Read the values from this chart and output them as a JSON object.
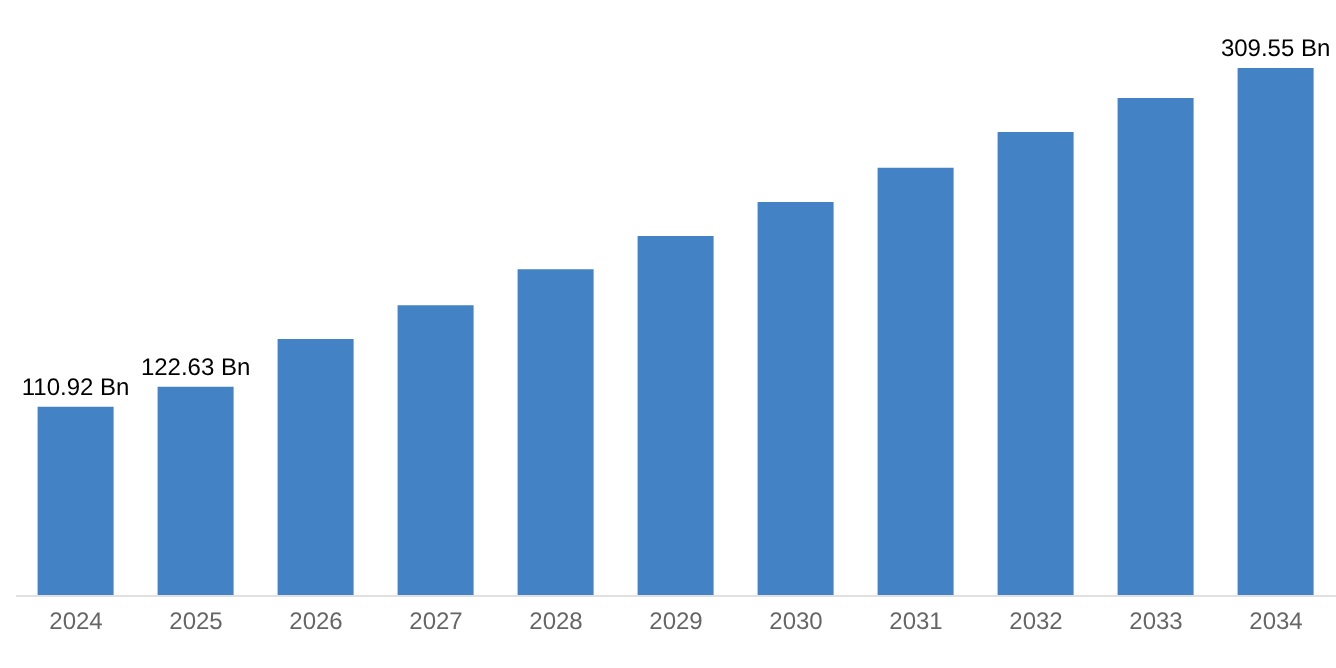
{
  "chart_data": {
    "type": "bar",
    "categories": [
      "2024",
      "2025",
      "2026",
      "2027",
      "2028",
      "2029",
      "2030",
      "2031",
      "2032",
      "2033",
      "2034"
    ],
    "values": [
      110.92,
      122.63,
      150.6,
      170.5,
      191.5,
      211,
      231,
      251,
      272,
      292,
      309.55
    ],
    "value_labels": [
      "110.92 Bn",
      "122.63 Bn",
      null,
      null,
      null,
      null,
      null,
      null,
      null,
      null,
      "309.55 Bn"
    ],
    "color": "#4282c5",
    "grid": false,
    "legend": false
  }
}
